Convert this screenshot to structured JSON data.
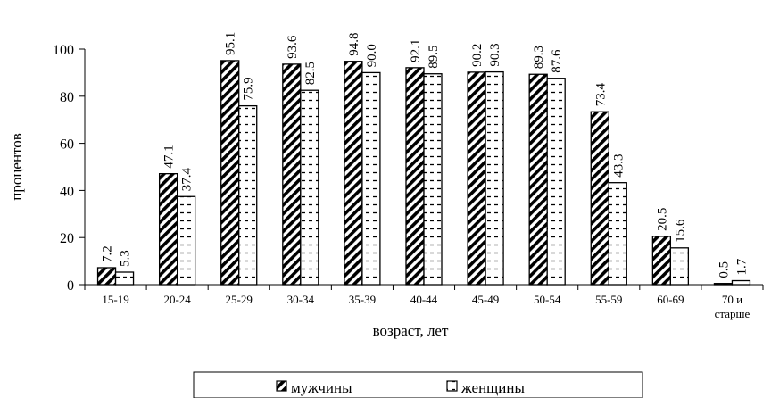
{
  "chart_data": {
    "type": "bar",
    "title": "",
    "xlabel": "возраст, лет",
    "ylabel": "процентов",
    "ylim": [
      0,
      100
    ],
    "yticks": [
      0,
      20,
      40,
      60,
      80,
      100
    ],
    "grid": false,
    "legend": "bottom",
    "categories": [
      "15-19",
      "20-24",
      "25-29",
      "30-34",
      "35-39",
      "40-44",
      "45-49",
      "50-54",
      "55-59",
      "60-69",
      "70 и\nстарше"
    ],
    "series": [
      {
        "name": "мужчины",
        "values": [
          7.2,
          47.1,
          95.1,
          93.6,
          94.8,
          92.1,
          90.2,
          89.3,
          73.4,
          20.5,
          0.5
        ],
        "labels": [
          "7.2",
          "47.1",
          "95.1",
          "93.6",
          "94.8",
          "92.1",
          "90.2",
          "89.3",
          "73.4",
          "20.5",
          "0.5"
        ]
      },
      {
        "name": "женщины",
        "values": [
          5.3,
          37.4,
          75.9,
          82.5,
          90.0,
          89.5,
          90.3,
          87.6,
          43.3,
          15.6,
          1.7
        ],
        "labels": [
          "5.3",
          "37.4",
          "75.9",
          "82.5",
          "90.0",
          "89.5",
          "90.3",
          "87.6",
          "43.3",
          "15.6",
          "1.7"
        ]
      }
    ]
  }
}
